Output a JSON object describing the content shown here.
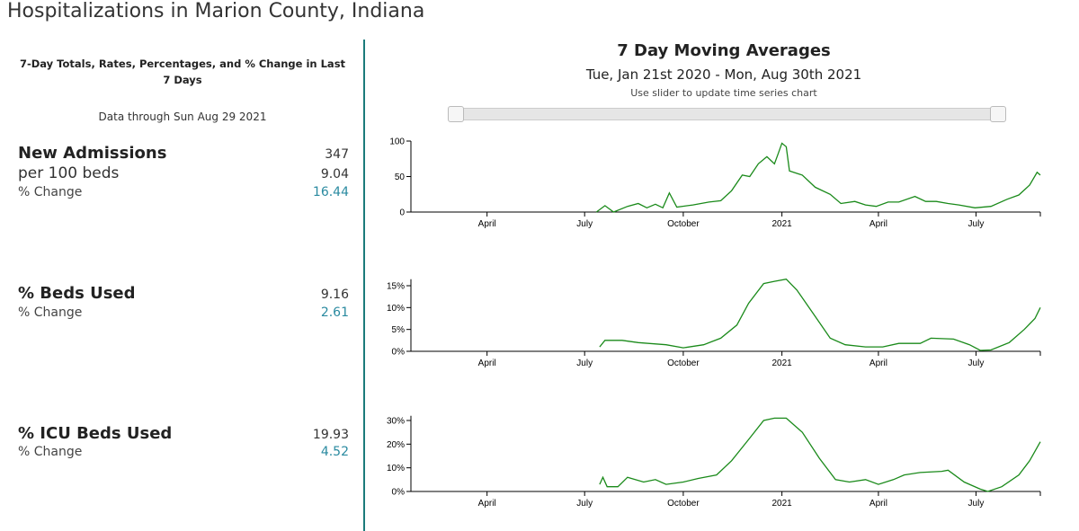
{
  "title": "Hospitalizations in Marion County, Indiana",
  "left": {
    "heading": "7-Day Totals, Rates, Percentages, and % Change in Last 7 Days",
    "data_through": "Data through Sun Aug 29 2021",
    "metrics": [
      {
        "label": "New Admissions",
        "value": "347",
        "sub_label": "per 100 beds",
        "sub_value": "9.04",
        "change_label": "% Change",
        "change": "16.44"
      },
      {
        "label": "% Beds Used",
        "value": "9.16",
        "change_label": "% Change",
        "change": "2.61"
      },
      {
        "label": "% ICU Beds Used",
        "value": "19.93",
        "change_label": "% Change",
        "change": "4.52"
      }
    ]
  },
  "right": {
    "title": "7 Day Moving Averages",
    "range": "Tue, Jan 21st 2020 - Mon, Aug 30th 2021",
    "hint": "Use slider to update time series chart"
  },
  "chart_data": [
    {
      "type": "line",
      "name": "new-admissions",
      "xrange": [
        "2020-01-21",
        "2021-08-30"
      ],
      "ylim": [
        0,
        100
      ],
      "yticks": [
        0,
        50,
        100
      ],
      "ytick_labels": [
        "0",
        "50",
        "100"
      ],
      "xticks": [
        {
          "date": "2020-04-01",
          "label": "April"
        },
        {
          "date": "2020-07-01",
          "label": "July"
        },
        {
          "date": "2020-10-01",
          "label": "October"
        },
        {
          "date": "2021-01-01",
          "label": "2021"
        },
        {
          "date": "2021-04-01",
          "label": "April"
        },
        {
          "date": "2021-07-01",
          "label": "July"
        }
      ],
      "color": "#1a8a1a",
      "points": [
        [
          "2020-07-12",
          0
        ],
        [
          "2020-07-20",
          9
        ],
        [
          "2020-07-28",
          0
        ],
        [
          "2020-08-10",
          8
        ],
        [
          "2020-08-20",
          12
        ],
        [
          "2020-08-28",
          6
        ],
        [
          "2020-09-05",
          11
        ],
        [
          "2020-09-12",
          6
        ],
        [
          "2020-09-18",
          27
        ],
        [
          "2020-09-25",
          7
        ],
        [
          "2020-10-10",
          10
        ],
        [
          "2020-10-25",
          14
        ],
        [
          "2020-11-05",
          16
        ],
        [
          "2020-11-15",
          30
        ],
        [
          "2020-11-25",
          52
        ],
        [
          "2020-12-02",
          50
        ],
        [
          "2020-12-10",
          68
        ],
        [
          "2020-12-18",
          78
        ],
        [
          "2020-12-25",
          68
        ],
        [
          "2020-12-28",
          80
        ],
        [
          "2021-01-01",
          97
        ],
        [
          "2021-01-05",
          92
        ],
        [
          "2021-01-08",
          58
        ],
        [
          "2021-01-20",
          52
        ],
        [
          "2021-02-01",
          35
        ],
        [
          "2021-02-15",
          25
        ],
        [
          "2021-02-25",
          12
        ],
        [
          "2021-03-10",
          15
        ],
        [
          "2021-03-20",
          10
        ],
        [
          "2021-03-30",
          8
        ],
        [
          "2021-04-10",
          14
        ],
        [
          "2021-04-20",
          14
        ],
        [
          "2021-05-05",
          22
        ],
        [
          "2021-05-15",
          15
        ],
        [
          "2021-05-25",
          15
        ],
        [
          "2021-06-05",
          12
        ],
        [
          "2021-06-15",
          10
        ],
        [
          "2021-06-30",
          6
        ],
        [
          "2021-07-15",
          8
        ],
        [
          "2021-07-30",
          18
        ],
        [
          "2021-08-10",
          24
        ],
        [
          "2021-08-20",
          38
        ],
        [
          "2021-08-27",
          56
        ],
        [
          "2021-08-30",
          52
        ]
      ]
    },
    {
      "type": "line",
      "name": "beds-used",
      "xrange": [
        "2020-01-21",
        "2021-08-30"
      ],
      "ylim": [
        0,
        16.5
      ],
      "yticks": [
        0,
        5,
        10,
        15
      ],
      "ytick_labels": [
        "0%",
        "5%",
        "10%",
        "15%"
      ],
      "xticks": [
        {
          "date": "2020-04-01",
          "label": "April"
        },
        {
          "date": "2020-07-01",
          "label": "July"
        },
        {
          "date": "2020-10-01",
          "label": "October"
        },
        {
          "date": "2021-01-01",
          "label": "2021"
        },
        {
          "date": "2021-04-01",
          "label": "April"
        },
        {
          "date": "2021-07-01",
          "label": "July"
        }
      ],
      "color": "#1a8a1a",
      "points": [
        [
          "2020-07-15",
          1
        ],
        [
          "2020-07-20",
          2.5
        ],
        [
          "2020-08-05",
          2.5
        ],
        [
          "2020-08-20",
          2
        ],
        [
          "2020-09-15",
          1.5
        ],
        [
          "2020-10-01",
          0.8
        ],
        [
          "2020-10-20",
          1.5
        ],
        [
          "2020-11-05",
          3
        ],
        [
          "2020-11-20",
          6
        ],
        [
          "2020-12-01",
          11
        ],
        [
          "2020-12-15",
          15.5
        ],
        [
          "2020-12-25",
          16
        ],
        [
          "2021-01-05",
          16.5
        ],
        [
          "2021-01-15",
          14
        ],
        [
          "2021-02-01",
          8
        ],
        [
          "2021-02-15",
          3
        ],
        [
          "2021-03-01",
          1.5
        ],
        [
          "2021-03-20",
          1
        ],
        [
          "2021-04-05",
          1
        ],
        [
          "2021-04-20",
          1.8
        ],
        [
          "2021-05-10",
          1.8
        ],
        [
          "2021-05-20",
          3
        ],
        [
          "2021-06-10",
          2.8
        ],
        [
          "2021-06-25",
          1.5
        ],
        [
          "2021-07-05",
          0.2
        ],
        [
          "2021-07-15",
          0.3
        ],
        [
          "2021-08-01",
          2
        ],
        [
          "2021-08-15",
          5
        ],
        [
          "2021-08-25",
          7.5
        ],
        [
          "2021-08-30",
          10
        ]
      ]
    },
    {
      "type": "line",
      "name": "icu-beds-used",
      "xrange": [
        "2020-01-21",
        "2021-08-30"
      ],
      "ylim": [
        0,
        32
      ],
      "yticks": [
        0,
        10,
        20,
        30
      ],
      "ytick_labels": [
        "0%",
        "10%",
        "20%",
        "30%"
      ],
      "xticks": [
        {
          "date": "2020-04-01",
          "label": "April"
        },
        {
          "date": "2020-07-01",
          "label": "July"
        },
        {
          "date": "2020-10-01",
          "label": "October"
        },
        {
          "date": "2021-01-01",
          "label": "2021"
        },
        {
          "date": "2021-04-01",
          "label": "April"
        },
        {
          "date": "2021-07-01",
          "label": "July"
        }
      ],
      "color": "#1a8a1a",
      "points": [
        [
          "2020-07-15",
          3
        ],
        [
          "2020-07-18",
          6
        ],
        [
          "2020-07-22",
          2
        ],
        [
          "2020-08-01",
          2
        ],
        [
          "2020-08-10",
          6
        ],
        [
          "2020-08-25",
          4
        ],
        [
          "2020-09-05",
          5
        ],
        [
          "2020-09-15",
          3
        ],
        [
          "2020-10-01",
          4
        ],
        [
          "2020-10-15",
          5.5
        ],
        [
          "2020-11-01",
          7
        ],
        [
          "2020-11-15",
          13
        ],
        [
          "2020-12-01",
          22
        ],
        [
          "2020-12-15",
          30
        ],
        [
          "2020-12-25",
          31
        ],
        [
          "2021-01-05",
          31
        ],
        [
          "2021-01-20",
          25
        ],
        [
          "2021-02-05",
          14
        ],
        [
          "2021-02-20",
          5
        ],
        [
          "2021-03-05",
          4
        ],
        [
          "2021-03-20",
          5
        ],
        [
          "2021-04-01",
          3
        ],
        [
          "2021-04-15",
          5
        ],
        [
          "2021-04-25",
          7
        ],
        [
          "2021-05-10",
          8
        ],
        [
          "2021-05-30",
          8.5
        ],
        [
          "2021-06-05",
          9
        ],
        [
          "2021-06-20",
          4
        ],
        [
          "2021-07-05",
          1
        ],
        [
          "2021-07-12",
          0
        ],
        [
          "2021-07-25",
          2
        ],
        [
          "2021-08-10",
          7
        ],
        [
          "2021-08-20",
          13
        ],
        [
          "2021-08-30",
          21
        ]
      ]
    }
  ]
}
